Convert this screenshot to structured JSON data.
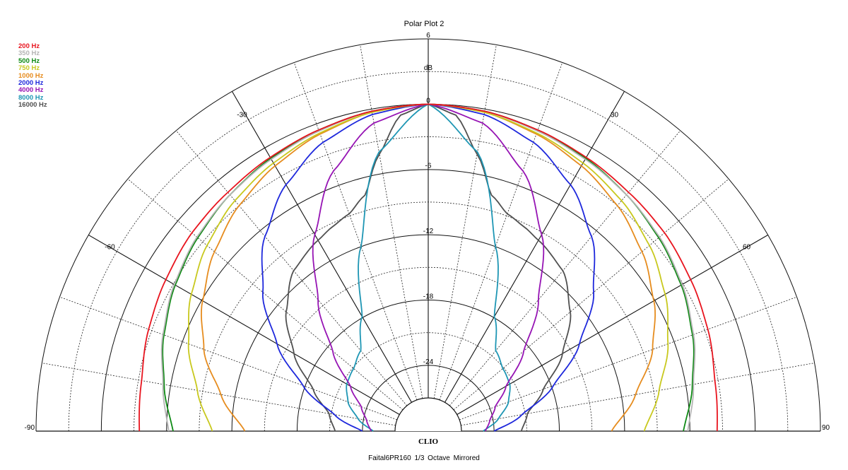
{
  "chart_data": {
    "type": "polar",
    "title": "Polar Plot 2",
    "caption": "Faital6PR160   1/3 Octave   Mirrored",
    "brand": "CLIO",
    "radial_unit": "dB",
    "radial_range": [
      -27,
      6
    ],
    "radial_ticks": [
      {
        "value": 6,
        "label": "6"
      },
      {
        "value": 3,
        "label": "dB"
      },
      {
        "value": 0,
        "label": "0"
      },
      {
        "value": -6,
        "label": "-6"
      },
      {
        "value": -12,
        "label": "-12"
      },
      {
        "value": -18,
        "label": "-18"
      },
      {
        "value": -24,
        "label": "-24"
      }
    ],
    "angle_range_deg": [
      -90,
      90
    ],
    "angle_ticks": [
      {
        "value": -90,
        "label": "-90"
      },
      {
        "value": -60,
        "label": "-60"
      },
      {
        "value": -30,
        "label": "-30"
      },
      {
        "value": 30,
        "label": "30"
      },
      {
        "value": 60,
        "label": "60"
      },
      {
        "value": 90,
        "label": "90"
      }
    ],
    "mirrored": true,
    "series": [
      {
        "name": "200 Hz",
        "color": "#e8141e",
        "angles": [
          0,
          10,
          20,
          30,
          40,
          50,
          60,
          70,
          80,
          90
        ],
        "values": [
          0,
          -0.2,
          -0.6,
          -1.0,
          -1.4,
          -1.7,
          -2.2,
          -2.7,
          -3.3,
          -3.5
        ]
      },
      {
        "name": "350 Hz",
        "color": "#b4b4b4",
        "angles": [
          0,
          10,
          20,
          30,
          40,
          50,
          60,
          70,
          80,
          90
        ],
        "values": [
          0,
          -0.2,
          -0.7,
          -1.2,
          -1.7,
          -2.3,
          -3.1,
          -4.1,
          -5.3,
          -6.2
        ]
      },
      {
        "name": "500 Hz",
        "color": "#0e8a14",
        "angles": [
          0,
          10,
          20,
          30,
          40,
          50,
          60,
          70,
          80,
          90
        ],
        "values": [
          0,
          -0.2,
          -0.6,
          -1.1,
          -1.7,
          -2.4,
          -3.2,
          -4.2,
          -5.4,
          -6.6
        ]
      },
      {
        "name": "750 Hz",
        "color": "#c8c81e",
        "angles": [
          0,
          10,
          20,
          30,
          40,
          50,
          60,
          70,
          80,
          90
        ],
        "values": [
          0,
          -0.3,
          -0.9,
          -1.6,
          -2.4,
          -3.5,
          -4.9,
          -6.6,
          -8.5,
          -10.2
        ]
      },
      {
        "name": "1000 Hz",
        "color": "#e68c1e",
        "angles": [
          0,
          10,
          20,
          30,
          40,
          50,
          60,
          70,
          80,
          90
        ],
        "values": [
          0,
          -0.3,
          -1.0,
          -1.9,
          -3.0,
          -4.4,
          -6.1,
          -8.1,
          -10.7,
          -13.2
        ]
      },
      {
        "name": "2000 Hz",
        "color": "#1e28dc",
        "angles": [
          0,
          10,
          20,
          30,
          40,
          50,
          60,
          70,
          80,
          90
        ],
        "values": [
          0,
          -0.5,
          -1.8,
          -3.9,
          -6.7,
          -10.2,
          -14.0,
          -17.8,
          -21.3,
          -24.0
        ]
      },
      {
        "name": "4000 Hz",
        "color": "#9614b4",
        "angles": [
          0,
          10,
          20,
          30,
          40,
          50,
          60,
          70,
          80,
          90
        ],
        "values": [
          0,
          -1.3,
          -4.6,
          -9.2,
          -14.3,
          -18.6,
          -21.8,
          -23.5,
          -24.3,
          -24.8
        ]
      },
      {
        "name": "8000 Hz",
        "color": "#1e96b4",
        "angles": [
          0,
          10,
          20,
          30,
          40,
          50,
          60,
          70,
          80,
          90
        ],
        "values": [
          0,
          -4.0,
          -12.0,
          -17.9,
          -20.4,
          -21.1,
          -21.4,
          -22.2,
          -23.5,
          -25.0
        ]
      },
      {
        "name": "16000 Hz",
        "color": "#505050",
        "angles": [
          0,
          5,
          10,
          15,
          20,
          25,
          30,
          40,
          50,
          60,
          70,
          80,
          90
        ],
        "values": [
          0,
          -0.9,
          -4.2,
          -7.6,
          -8.8,
          -9.3,
          -9.8,
          -10.8,
          -13.0,
          -15.8,
          -18.8,
          -20.8,
          -21.5
        ]
      }
    ]
  }
}
